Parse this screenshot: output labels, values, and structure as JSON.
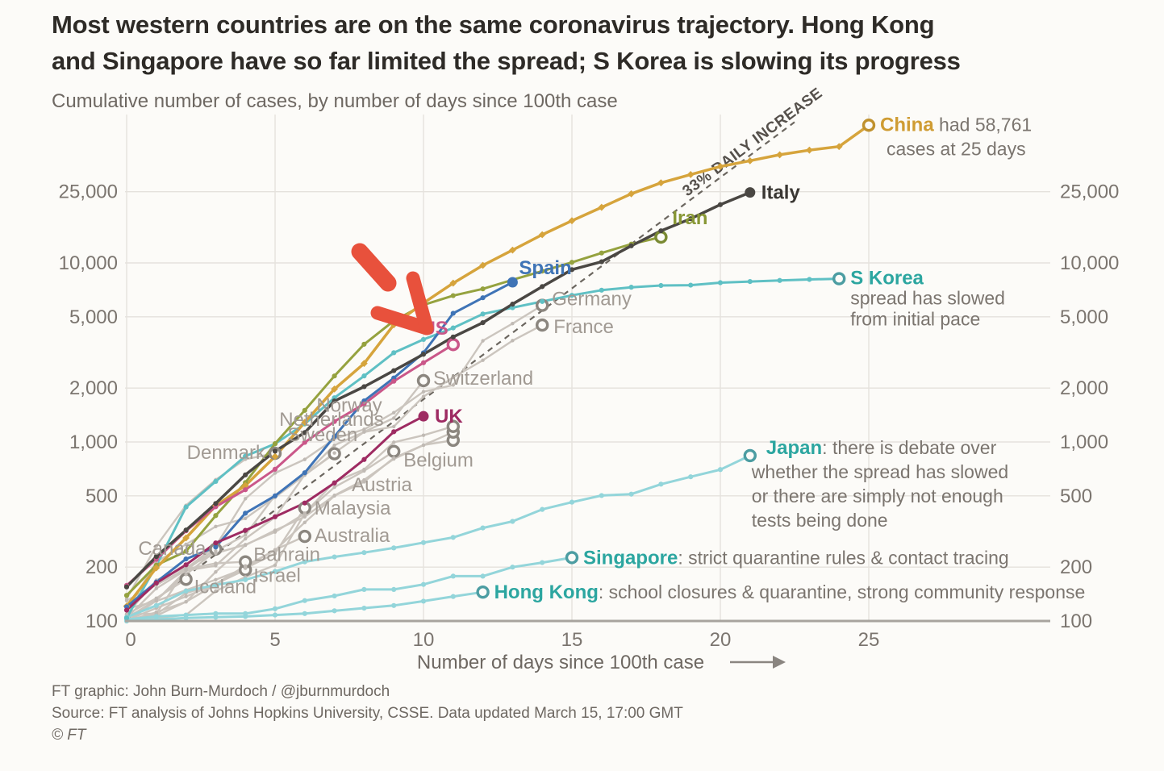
{
  "header": {
    "title_line1": "Most western countries are on the same coronavirus trajectory. Hong Kong",
    "title_line2": "and Singapore have so far limited the spread; S Korea is slowing its progress"
  },
  "footer": {
    "credit": "FT graphic: John Burn-Murdoch / @jburnmurdoch",
    "source": "Source: FT analysis of Johns Hopkins University, CSSE. Data updated March 15, 17:00 GMT",
    "copyright": "© FT"
  },
  "colors": {
    "background": "#fcfbf8",
    "grid": "#e5e2dd",
    "axis": "#a8a49e",
    "tick_text": "#7b756f",
    "annotation_text": "#7b756f",
    "gray_line": "#cbc5be",
    "gray_label": "#a19a93",
    "gray_ring": "#8b867f",
    "teal_ring": "#4c9da2",
    "dashed_reference": "#6b665f",
    "arrow_red": "#e8513c"
  },
  "chart_data": {
    "type": "line",
    "title": "Most western countries are on the same coronavirus trajectory. Hong Kong and Singapore have so far limited the spread; S Korea is slowing its progress",
    "subtitle": "Cumulative number of cases, by number of days since 100th case",
    "xlabel": "Number of days since 100th case",
    "x_ticks": [
      0,
      5,
      10,
      15,
      20,
      25
    ],
    "y_scale": "log",
    "y_ticks": [
      {
        "v": 100,
        "label": "100"
      },
      {
        "v": 200,
        "label": "200"
      },
      {
        "v": 500,
        "label": "500"
      },
      {
        "v": 1000,
        "label": "1,000"
      },
      {
        "v": 2000,
        "label": "2,000"
      },
      {
        "v": 5000,
        "label": "5,000"
      },
      {
        "v": 10000,
        "label": "10,000"
      },
      {
        "v": 25000,
        "label": "25,000"
      }
    ],
    "ylim": [
      100,
      66000
    ],
    "grid": true,
    "reference_line": {
      "label": "33% DAILY INCREASE",
      "daily_growth_pct": 33,
      "start_day": 0,
      "start_value": 100,
      "end_day": 22.8
    },
    "annotation_arrow": {
      "color": "#e8513c",
      "points_at": "western countries cluster near day 10"
    },
    "series": [
      {
        "key": "canada",
        "name": "Canada",
        "gray": true,
        "values": [
          104,
          152,
          193,
          252
        ],
        "label": {
          "anchor": "end",
          "dx": -12,
          "dy": 7
        }
      },
      {
        "key": "iceland",
        "name": "Iceland",
        "gray": true,
        "values": [
          109,
          134,
          171
        ],
        "label": {
          "anchor": "start",
          "dx": 10,
          "dy": 17
        }
      },
      {
        "key": "israel",
        "name": "Israel",
        "gray": true,
        "values": [
          100,
          109,
          143,
          161,
          193
        ],
        "label": {
          "anchor": "start",
          "dx": 10,
          "dy": 15
        }
      },
      {
        "key": "bahrain",
        "name": "Bahrain",
        "gray": true,
        "values": [
          109,
          110,
          195,
          210,
          214
        ],
        "label": {
          "anchor": "start",
          "dx": 10,
          "dy": -1
        }
      },
      {
        "key": "australia",
        "name": "Australia",
        "gray": true,
        "values": [
          100,
          107,
          128,
          160,
          200,
          250,
          297
        ],
        "label": {
          "anchor": "start",
          "dx": 12,
          "dy": 7
        }
      },
      {
        "key": "malaysia",
        "name": "Malaysia",
        "gray": true,
        "values": [
          117,
          129,
          149,
          170,
          197,
          238,
          428
        ],
        "label": {
          "anchor": "start",
          "dx": 12,
          "dy": 8
        }
      },
      {
        "key": "belgium",
        "name": "Belgium",
        "gray": true,
        "values": [
          109,
          169,
          200,
          239,
          267,
          314,
          399,
          559,
          689,
          886
        ],
        "label": {
          "anchor": "start",
          "dx": 12,
          "dy": 19
        }
      },
      {
        "key": "austria",
        "name": "Austria",
        "gray": true,
        "values": [
          104,
          131,
          182,
          246,
          302,
          504,
          655,
          860
        ]
      },
      {
        "key": "sweden",
        "name": "Sweden",
        "gray": true,
        "values": [
          101,
          118,
          137,
          161,
          203,
          248,
          355,
          500,
          599,
          814,
          961,
          1022
        ]
      },
      {
        "key": "netherlands",
        "name": "Netherlands",
        "gray": true,
        "values": [
          100,
          112,
          128,
          188,
          265,
          321,
          382,
          503,
          614,
          804,
          959,
          1135
        ]
      },
      {
        "key": "norway",
        "name": "Norway",
        "gray": true,
        "values": [
          100,
          104,
          108,
          147,
          176,
          205,
          400,
          598,
          702,
          996,
          1090,
          1221
        ]
      },
      {
        "key": "denmark",
        "name": "Denmark",
        "gray": true,
        "values": [
          133,
          262,
          442,
          615,
          801,
          864
        ],
        "label": {
          "anchor": "end",
          "dx": -12,
          "dy": 7
        }
      },
      {
        "key": "switzerland",
        "name": "Switzerland",
        "gray": true,
        "values": [
          114,
          214,
          268,
          337,
          374,
          491,
          652,
          868,
          1139,
          1359,
          2200
        ],
        "label": {
          "anchor": "start",
          "dx": 12,
          "dy": 5
        }
      },
      {
        "key": "france",
        "name": "France",
        "gray": true,
        "values": [
          100,
          130,
          191,
          204,
          288,
          380,
          656,
          959,
          1136,
          1219,
          1794,
          2293,
          2860,
          3681,
          4496
        ],
        "label": {
          "anchor": "start",
          "dx": 14,
          "dy": 10
        }
      },
      {
        "key": "germany",
        "name": "Germany",
        "gray": true,
        "values": [
          130,
          159,
          196,
          262,
          482,
          670,
          799,
          1040,
          1176,
          1457,
          1908,
          2078,
          3675,
          4585,
          5795
        ],
        "label": {
          "anchor": "start",
          "dx": 12,
          "dy": 0
        }
      },
      {
        "key": "hongkong",
        "name": "Hong Kong",
        "color": "#93d5da",
        "label_color": "#2ca6a0",
        "bold": true,
        "ring": "#4c9da2",
        "values": [
          100,
          102,
          104,
          105,
          106,
          108,
          110,
          114,
          118,
          122,
          129,
          137,
          145
        ],
        "label": {
          "anchor": "start",
          "dx": 14,
          "dy": 8
        },
        "annotation_inline": ": school closures & quarantine, strong community response"
      },
      {
        "key": "singapore",
        "name": "Singapore",
        "color": "#93d5da",
        "label_color": "#2ca6a0",
        "bold": true,
        "ring": "#4c9da2",
        "values": [
          102,
          106,
          108,
          110,
          110,
          117,
          130,
          138,
          150,
          150,
          160,
          178,
          178,
          200,
          212,
          226
        ],
        "label": {
          "anchor": "start",
          "dx": 14,
          "dy": 8
        },
        "annotation_inline": ": strict quarantine rules & contact tracing"
      },
      {
        "key": "japan",
        "name": "Japan",
        "color": "#93d5da",
        "label_color": "#2ca6a0",
        "bold": true,
        "ring": "#4c9da2",
        "values": [
          105,
          122,
          147,
          159,
          170,
          189,
          214,
          228,
          241,
          256,
          274,
          293,
          331,
          360,
          420,
          461,
          502,
          511,
          581,
          639,
          701,
          839
        ],
        "label": {
          "anchor": "start",
          "dx": 20,
          "dy": -2
        },
        "annotation_inline": ": there is debate over",
        "annotation_lines": [
          "whether the spread has slowed",
          "or there are simply not enough",
          "tests being done"
        ],
        "annotation_offset": {
          "dx": 2,
          "dy": 28,
          "lh": 30
        }
      },
      {
        "key": "skorea",
        "name": "S Korea",
        "color": "#5fc0c4",
        "label_color": "#2ca6a0",
        "bold": true,
        "ring": "#4c9da2",
        "values": [
          104,
          204,
          433,
          602,
          833,
          977,
          1261,
          1766,
          2337,
          3150,
          3736,
          4335,
          5186,
          5621,
          6088,
          6593,
          7041,
          7314,
          7478,
          7513,
          7755,
          7869,
          7979,
          8086,
          8162
        ],
        "label": {
          "anchor": "start",
          "dx": 14,
          "dy": 7
        },
        "annotation_lines": [
          "spread has slowed",
          "from initial pace"
        ],
        "annotation_offset": {
          "dx": 14,
          "dy": 32,
          "lh": 26
        }
      },
      {
        "key": "iran",
        "name": "Iran",
        "color": "#95a23f",
        "label_color": "#889735",
        "bold": true,
        "ring": "#7a8a33",
        "values": [
          139,
          205,
          245,
          388,
          593,
          978,
          1501,
          2336,
          3513,
          4747,
          5823,
          6566,
          7161,
          8042,
          9000,
          10075,
          11364,
          12729,
          13938
        ],
        "label": {
          "anchor": "start",
          "dx": 14,
          "dy": -16
        }
      },
      {
        "key": "china",
        "name": "China",
        "color": "#d6a43c",
        "label_color": "#cf9c33",
        "bold": true,
        "ring": "#c0922f",
        "marker": "diamond",
        "width": 3.5,
        "values": [
          121,
          198,
          291,
          440,
          571,
          830,
          1287,
          1975,
          2744,
          4515,
          5974,
          7711,
          9692,
          11791,
          14380,
          17205,
          20440,
          24324,
          28018,
          31161,
          34546,
          37198,
          40171,
          42638,
          44653,
          58761
        ],
        "label": {
          "anchor": "start",
          "dx": 14,
          "dy": 7
        },
        "annotation_inline": " had 58,761",
        "annotation_lines": [
          "cases at 25 days"
        ],
        "annotation_offset": {
          "dx": 22,
          "dy": 37,
          "lh": 26
        }
      },
      {
        "key": "spain",
        "name": "Spain",
        "color": "#3f74b6",
        "label_color": "#3f74b6",
        "bold": true,
        "end": "dot",
        "values": [
          120,
          165,
          222,
          259,
          400,
          500,
          673,
          1073,
          1695,
          2277,
          3146,
          5232,
          6391,
          7798
        ],
        "label": {
          "anchor": "start",
          "dx": 8,
          "dy": -10
        }
      },
      {
        "key": "us",
        "name": "US",
        "color": "#ca5789",
        "label_color": "#ca5789",
        "bold": true,
        "ring": "#ca5789",
        "values": [
          158,
          221,
          319,
          435,
          541,
          704,
          994,
          1301,
          1630,
          2183,
          2770,
          3499
        ],
        "label": {
          "anchor": "end",
          "dx": -6,
          "dy": -12
        }
      },
      {
        "key": "uk",
        "name": "UK",
        "color": "#9e2b62",
        "label_color": "#9e2b62",
        "bold": true,
        "end": "dot",
        "values": [
          115,
          163,
          206,
          273,
          321,
          382,
          456,
          590,
          798,
          1140,
          1391
        ],
        "label": {
          "anchor": "start",
          "dx": 14,
          "dy": 8
        }
      },
      {
        "key": "italy",
        "name": "Italy",
        "color": "#4a4743",
        "label_color": "#3a3733",
        "bold": true,
        "end": "dot",
        "width": 3.5,
        "values": [
          155,
          229,
          322,
          453,
          655,
          888,
          1128,
          1694,
          2036,
          2502,
          3089,
          3858,
          4636,
          5883,
          7375,
          9172,
          10149,
          12462,
          15113,
          17660,
          21157,
          24747
        ],
        "label": {
          "anchor": "start",
          "dx": 14,
          "dy": 8
        }
      }
    ],
    "float_labels": [
      {
        "text": "Norway",
        "day": 7.5,
        "value": 1600
      },
      {
        "text": "Netherlands",
        "day": 6.9,
        "value": 1340
      },
      {
        "text": "Sweden",
        "day": 6.6,
        "value": 1100
      },
      {
        "text": "Austria",
        "day": 8.6,
        "value": 578
      }
    ]
  }
}
